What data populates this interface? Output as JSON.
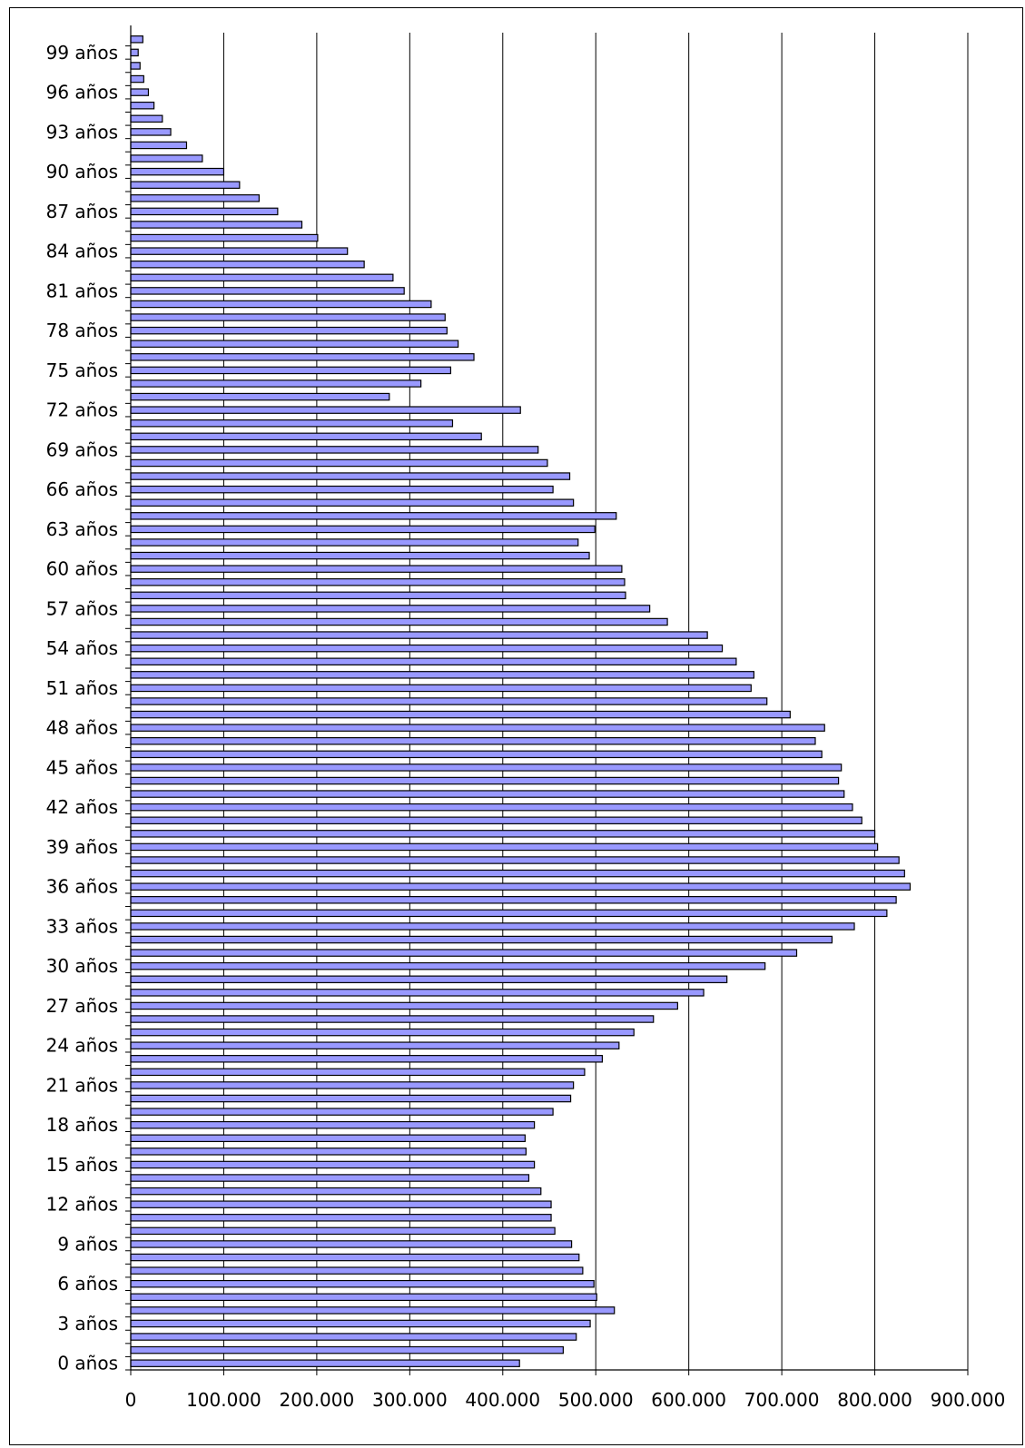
{
  "chart_data": {
    "type": "bar",
    "orientation": "horizontal",
    "categories": [
      "0 años",
      "1 años",
      "2 años",
      "3 años",
      "4 años",
      "5 años",
      "6 años",
      "7 años",
      "8 años",
      "9 años",
      "10 años",
      "11 años",
      "12 años",
      "13 años",
      "14 años",
      "15 años",
      "16 años",
      "17 años",
      "18 años",
      "19 años",
      "20 años",
      "21 años",
      "22 años",
      "23 años",
      "24 años",
      "25 años",
      "26 años",
      "27 años",
      "28 años",
      "29 años",
      "30 años",
      "31 años",
      "32 años",
      "33 años",
      "34 años",
      "35 años",
      "36 años",
      "37 años",
      "38 años",
      "39 años",
      "40 años",
      "41 años",
      "42 años",
      "43 años",
      "44 años",
      "45 años",
      "46 años",
      "47 años",
      "48 años",
      "49 años",
      "50 años",
      "51 años",
      "52 años",
      "53 años",
      "54 años",
      "55 años",
      "56 años",
      "57 años",
      "58 años",
      "59 años",
      "60 años",
      "61 años",
      "62 años",
      "63 años",
      "64 años",
      "65 años",
      "66 años",
      "67 años",
      "68 años",
      "69 años",
      "70 años",
      "71 años",
      "72 años",
      "73 años",
      "74 años",
      "75 años",
      "76 años",
      "77 años",
      "78 años",
      "79 años",
      "80 años",
      "81 años",
      "82 años",
      "83 años",
      "84 años",
      "85 años",
      "86 años",
      "87 años",
      "88 años",
      "89 años",
      "90 años",
      "91 años",
      "92 años",
      "93 años",
      "94 años",
      "95 años",
      "96 años",
      "97 años",
      "98 años",
      "99 años",
      "100 años"
    ],
    "visible_category_labels": [
      "0 años",
      "3 años",
      "6 años",
      "9 años",
      "12 años",
      "15 años",
      "18 años",
      "21 años",
      "24 años",
      "27 años",
      "30 años",
      "33 años",
      "36 años",
      "39 años",
      "42 años",
      "45 años",
      "48 años",
      "51 años",
      "54 años",
      "57 años",
      "60 años",
      "63 años",
      "66 años",
      "69 años",
      "72 años",
      "75 años",
      "78 años",
      "81 años",
      "84 años",
      "87 años",
      "90 años",
      "93 años",
      "96 años",
      "99 años"
    ],
    "values": [
      418000,
      465000,
      479000,
      494000,
      520000,
      501000,
      498000,
      486000,
      482000,
      474000,
      456000,
      452000,
      452000,
      441000,
      428000,
      434000,
      425000,
      424000,
      434000,
      454000,
      473000,
      476000,
      488000,
      507000,
      525000,
      541000,
      562000,
      588000,
      616000,
      641000,
      682000,
      716000,
      754000,
      778000,
      813000,
      823000,
      838000,
      832000,
      826000,
      803000,
      800000,
      786000,
      776000,
      767000,
      761000,
      764000,
      743000,
      736000,
      746000,
      709000,
      684000,
      667000,
      670000,
      651000,
      636000,
      620000,
      577000,
      558000,
      532000,
      531000,
      528000,
      493000,
      481000,
      499000,
      522000,
      476000,
      454000,
      472000,
      448000,
      438000,
      377000,
      346000,
      419000,
      278000,
      312000,
      344000,
      369000,
      352000,
      340000,
      338000,
      323000,
      294000,
      282000,
      251000,
      233000,
      201000,
      184000,
      158000,
      138000,
      117000,
      100000,
      77000,
      60000,
      43000,
      34000,
      25000,
      19000,
      14000,
      10000,
      8000,
      13000
    ],
    "xlim": [
      0,
      900000
    ],
    "x_ticks": [
      "0",
      "100.000",
      "200.000",
      "300.000",
      "400.000",
      "500.000",
      "600.000",
      "700.000",
      "800.000",
      "900.000"
    ],
    "grid": "vertical",
    "bar_color": "#9999ff",
    "bar_edge_color": "#000000",
    "title": "",
    "xlabel": "",
    "ylabel": ""
  }
}
